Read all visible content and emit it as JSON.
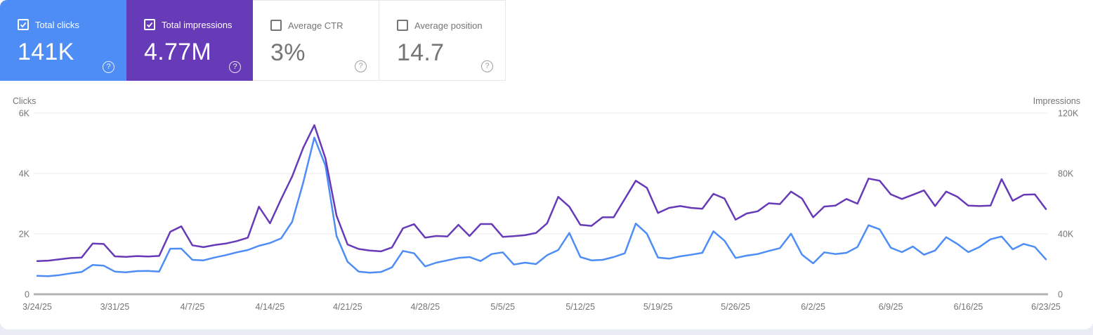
{
  "help_glyph": "?",
  "cards": [
    {
      "label": "Total clicks",
      "value": "141K",
      "selected": true,
      "color": "#4D8DF5"
    },
    {
      "label": "Total impressions",
      "value": "4.77M",
      "selected": true,
      "color": "#673AB7"
    },
    {
      "label": "Average CTR",
      "value": "3%",
      "selected": false,
      "color": "#ffffff"
    },
    {
      "label": "Average position",
      "value": "14.7",
      "selected": false,
      "color": "#ffffff"
    }
  ],
  "chart_data": {
    "type": "line",
    "grid": "horizontal-only",
    "legend_position": "none",
    "left_axis": {
      "title": "Clicks",
      "ticks": [
        "0",
        "2K",
        "4K",
        "6K"
      ],
      "max": 6000
    },
    "right_axis": {
      "title": "Impressions",
      "ticks": [
        "0",
        "40K",
        "80K",
        "120K"
      ],
      "max": 120000
    },
    "x_labels": [
      "3/24/25",
      "3/31/25",
      "4/7/25",
      "4/14/25",
      "4/21/25",
      "4/28/25",
      "5/5/25",
      "5/12/25",
      "5/19/25",
      "5/26/25",
      "6/2/25",
      "6/9/25",
      "6/16/25",
      "6/23/25"
    ],
    "points_per_label": 7,
    "series": [
      {
        "name": "Total clicks",
        "axis": "left",
        "color": "#4D8DF5",
        "values": [
          610,
          600,
          635,
          690,
          737,
          970,
          947,
          752,
          729,
          768,
          775,
          752,
          1510,
          1512,
          1140,
          1124,
          1217,
          1295,
          1388,
          1465,
          1605,
          1698,
          1850,
          2400,
          3700,
          5190,
          4260,
          1930,
          1077,
          752,
          714,
          737,
          891,
          1435,
          1356,
          923,
          1047,
          1124,
          1202,
          1233,
          1100,
          1333,
          1388,
          984,
          1047,
          1000,
          1295,
          1465,
          2031,
          1233,
          1124,
          1140,
          1233,
          1356,
          2342,
          2008,
          1217,
          1179,
          1256,
          1310,
          1372,
          2086,
          1775,
          1202,
          1279,
          1333,
          1435,
          1528,
          2008,
          1310,
          1023,
          1388,
          1333,
          1372,
          1566,
          2287,
          2148,
          1543,
          1396,
          1582,
          1310,
          1449,
          1891,
          1667,
          1396,
          1566,
          1821,
          1914,
          1489,
          1667,
          1566,
          1156
        ]
      },
      {
        "name": "Total impressions",
        "axis": "right",
        "color": "#673AB7",
        "values": [
          22000,
          22300,
          23100,
          24000,
          24300,
          33600,
          33300,
          25100,
          24800,
          25300,
          25000,
          25400,
          41400,
          45000,
          32400,
          31200,
          32600,
          33600,
          35200,
          37500,
          58000,
          47000,
          63000,
          78000,
          97000,
          112000,
          90000,
          52000,
          33000,
          30000,
          29000,
          28400,
          31000,
          43700,
          46400,
          37500,
          38600,
          38300,
          46000,
          38600,
          46500,
          46500,
          38000,
          38500,
          39100,
          40600,
          47000,
          64500,
          58000,
          46000,
          45300,
          51000,
          51000,
          63100,
          75200,
          70500,
          53800,
          57200,
          58400,
          57200,
          56600,
          66500,
          63400,
          49400,
          53500,
          55000,
          60300,
          59700,
          68000,
          63400,
          51000,
          58100,
          58700,
          63100,
          60000,
          76600,
          75200,
          66200,
          63100,
          65900,
          68800,
          58400,
          68000,
          64600,
          58700,
          58400,
          58700,
          76300,
          61900,
          65900,
          66200,
          56400
        ]
      }
    ]
  }
}
